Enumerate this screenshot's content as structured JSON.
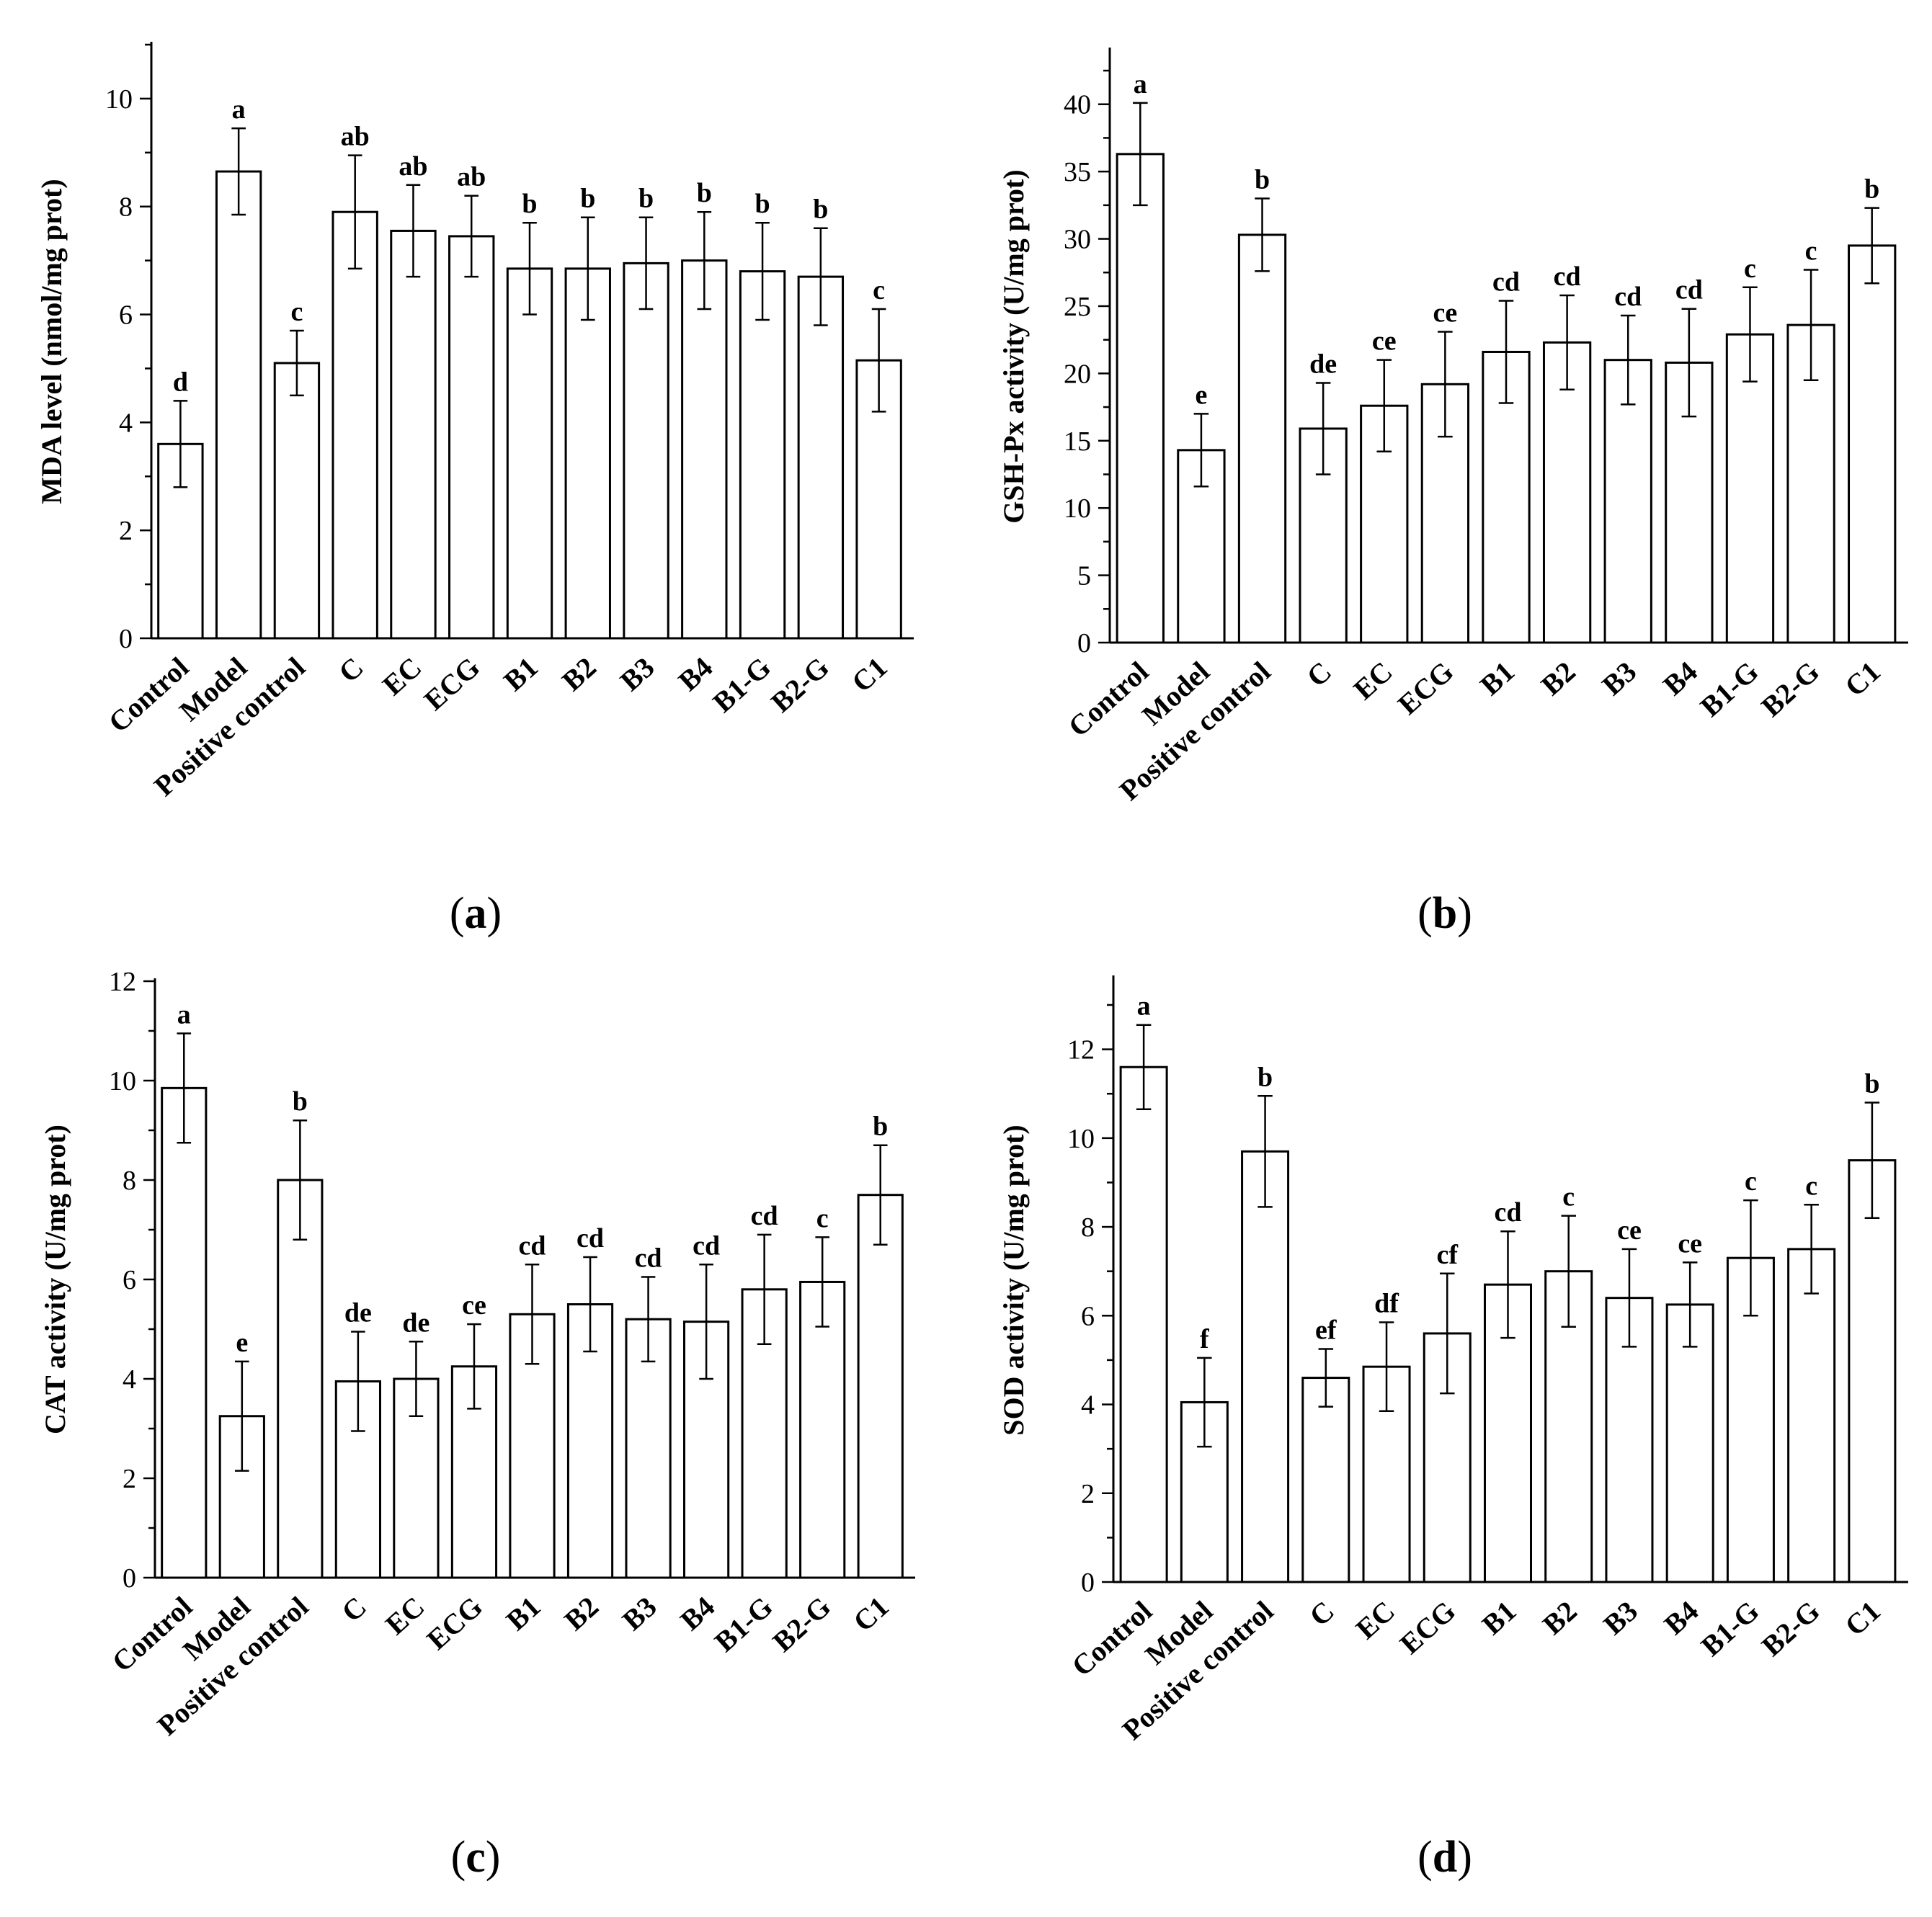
{
  "chart_data": [
    {
      "type": "bar",
      "panel": "a",
      "caption": "(a)",
      "categories": [
        "Control",
        "Model",
        "Positive control",
        "C",
        "EC",
        "ECG",
        "B1",
        "B2",
        "B3",
        "B4",
        "B1-G",
        "B2-G",
        "C1"
      ],
      "values": [
        3.6,
        8.65,
        5.1,
        7.9,
        7.55,
        7.45,
        6.85,
        6.85,
        6.95,
        7.0,
        6.8,
        6.7,
        5.15
      ],
      "errors": [
        0.8,
        0.8,
        0.6,
        1.05,
        0.85,
        0.75,
        0.85,
        0.95,
        0.85,
        0.9,
        0.9,
        0.9,
        0.95
      ],
      "significance": [
        "d",
        "a",
        "c",
        "ab",
        "ab",
        "ab",
        "b",
        "b",
        "b",
        "b",
        "b",
        "b",
        "c"
      ],
      "ylabel": "MDA level (nmol/mg prot)",
      "xlabel": "",
      "ylim": [
        0,
        11
      ],
      "yticks": [
        0,
        2,
        4,
        6,
        8,
        10
      ]
    },
    {
      "type": "bar",
      "panel": "b",
      "caption": "(b)",
      "categories": [
        "Control",
        "Model",
        "Positive control",
        "C",
        "EC",
        "ECG",
        "B1",
        "B2",
        "B3",
        "B4",
        "B1-G",
        "B2-G",
        "C1"
      ],
      "values": [
        36.3,
        14.3,
        30.3,
        15.9,
        17.6,
        19.2,
        21.6,
        22.3,
        21.0,
        20.8,
        22.9,
        23.6,
        29.5
      ],
      "errors": [
        3.8,
        2.7,
        2.7,
        3.4,
        3.4,
        3.9,
        3.8,
        3.5,
        3.3,
        4.0,
        3.5,
        4.1,
        2.8
      ],
      "significance": [
        "a",
        "e",
        "b",
        "de",
        "ce",
        "ce",
        "cd",
        "cd",
        "cd",
        "cd",
        "c",
        "c",
        "b"
      ],
      "ylabel": "GSH-Px activity (U/mg prot)",
      "xlabel": "",
      "ylim": [
        0,
        44
      ],
      "yticks": [
        0,
        5,
        10,
        15,
        20,
        25,
        30,
        35,
        40
      ]
    },
    {
      "type": "bar",
      "panel": "c",
      "caption": "(c)",
      "categories": [
        "Control",
        "Model",
        "Positive control",
        "C",
        "EC",
        "ECG",
        "B1",
        "B2",
        "B3",
        "B4",
        "B1-G",
        "B2-G",
        "C1"
      ],
      "values": [
        9.85,
        3.25,
        8.0,
        3.95,
        4.0,
        4.25,
        5.3,
        5.5,
        5.2,
        5.15,
        5.8,
        5.95,
        7.7
      ],
      "errors": [
        1.1,
        1.1,
        1.2,
        1.0,
        0.75,
        0.85,
        1.0,
        0.95,
        0.85,
        1.15,
        1.1,
        0.9,
        1.0
      ],
      "significance": [
        "a",
        "e",
        "b",
        "de",
        "de",
        "ce",
        "cd",
        "cd",
        "cd",
        "cd",
        "cd",
        "c",
        "b"
      ],
      "ylabel": "CAT activity (U/mg prot)",
      "xlabel": "",
      "ylim": [
        0,
        12
      ],
      "yticks": [
        0,
        2,
        4,
        6,
        8,
        10,
        12
      ]
    },
    {
      "type": "bar",
      "panel": "d",
      "caption": "(d)",
      "categories": [
        "Control",
        "Model",
        "Positive control",
        "C",
        "EC",
        "ECG",
        "B1",
        "B2",
        "B3",
        "B4",
        "B1-G",
        "B2-G",
        "C1"
      ],
      "values": [
        11.6,
        4.05,
        9.7,
        4.6,
        4.85,
        5.6,
        6.7,
        7.0,
        6.4,
        6.25,
        7.3,
        7.5,
        9.5
      ],
      "errors": [
        0.95,
        1.0,
        1.25,
        0.65,
        1.0,
        1.35,
        1.2,
        1.25,
        1.1,
        0.95,
        1.3,
        1.0,
        1.3
      ],
      "significance": [
        "a",
        "f",
        "b",
        "ef",
        "df",
        "cf",
        "cd",
        "c",
        "ce",
        "ce",
        "c",
        "c",
        "b"
      ],
      "ylabel": "SOD activity (U/mg prot)",
      "xlabel": "",
      "ylim": [
        0,
        13.6
      ],
      "yticks": [
        0,
        2,
        4,
        6,
        8,
        10,
        12
      ]
    }
  ]
}
